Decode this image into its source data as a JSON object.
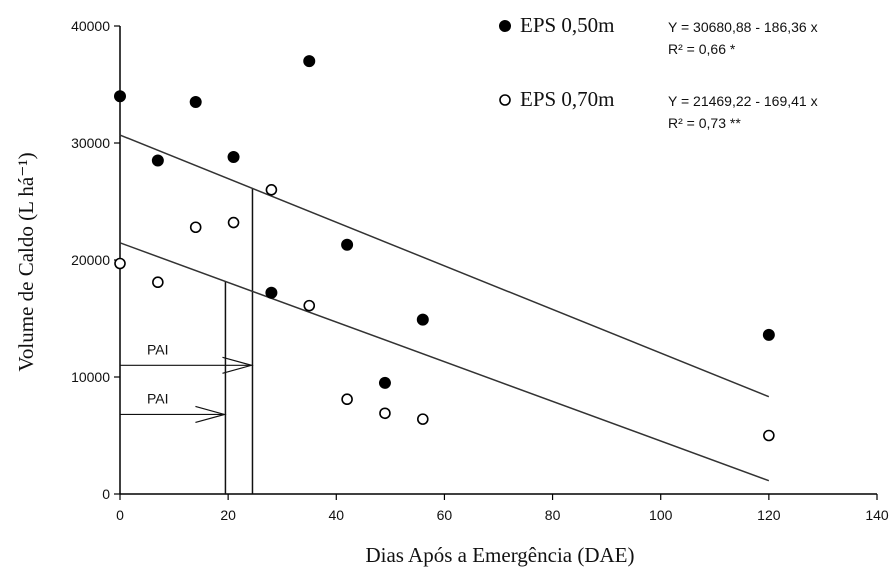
{
  "chart_data": {
    "type": "scatter",
    "xlabel": "Dias Após a Emergência (DAE)",
    "ylabel": "Volume de Caldo (L há⁻¹)",
    "xlim": [
      0,
      140
    ],
    "ylim": [
      0,
      40000
    ],
    "xticks": [
      0,
      20,
      40,
      60,
      80,
      100,
      120,
      140
    ],
    "yticks": [
      0,
      10000,
      20000,
      30000,
      40000
    ],
    "grid": false,
    "legend_position": "top-right",
    "series": [
      {
        "name": "EPS 0,50m",
        "marker": "filled-circle",
        "color": "#000000",
        "points": [
          {
            "x": 0,
            "y": 34000
          },
          {
            "x": 7,
            "y": 28500
          },
          {
            "x": 14,
            "y": 33500
          },
          {
            "x": 21,
            "y": 28800
          },
          {
            "x": 28,
            "y": 17200
          },
          {
            "x": 35,
            "y": 37000
          },
          {
            "x": 42,
            "y": 21300
          },
          {
            "x": 49,
            "y": 9500
          },
          {
            "x": 56,
            "y": 14900
          },
          {
            "x": 120,
            "y": 13600
          }
        ],
        "fit": {
          "intercept": 30680.88,
          "slope": -186.36,
          "x_range": [
            0,
            120
          ],
          "equation": "Y = 30680,88 - 186,36 x",
          "r2": "R² = 0,66 *"
        }
      },
      {
        "name": "EPS 0,70m",
        "marker": "open-circle",
        "color": "#000000",
        "points": [
          {
            "x": 0,
            "y": 19700
          },
          {
            "x": 7,
            "y": 18100
          },
          {
            "x": 14,
            "y": 22800
          },
          {
            "x": 21,
            "y": 23200
          },
          {
            "x": 28,
            "y": 26000
          },
          {
            "x": 35,
            "y": 16100
          },
          {
            "x": 42,
            "y": 8100
          },
          {
            "x": 49,
            "y": 6900
          },
          {
            "x": 56,
            "y": 6400
          },
          {
            "x": 120,
            "y": 5000
          }
        ],
        "fit": {
          "intercept": 21469.22,
          "slope": -169.41,
          "x_range": [
            0,
            120
          ],
          "equation": "Y = 21469,22 - 169,41 x",
          "r2": "R² = 0,73 **"
        }
      }
    ],
    "annotations": [
      {
        "label": "PAI",
        "x": 24.5,
        "y_level": 11000,
        "refers_to": "EPS 0,50m"
      },
      {
        "label": "PAI",
        "x": 19.5,
        "y_level": 6800,
        "refers_to": "EPS 0,70m"
      }
    ]
  }
}
